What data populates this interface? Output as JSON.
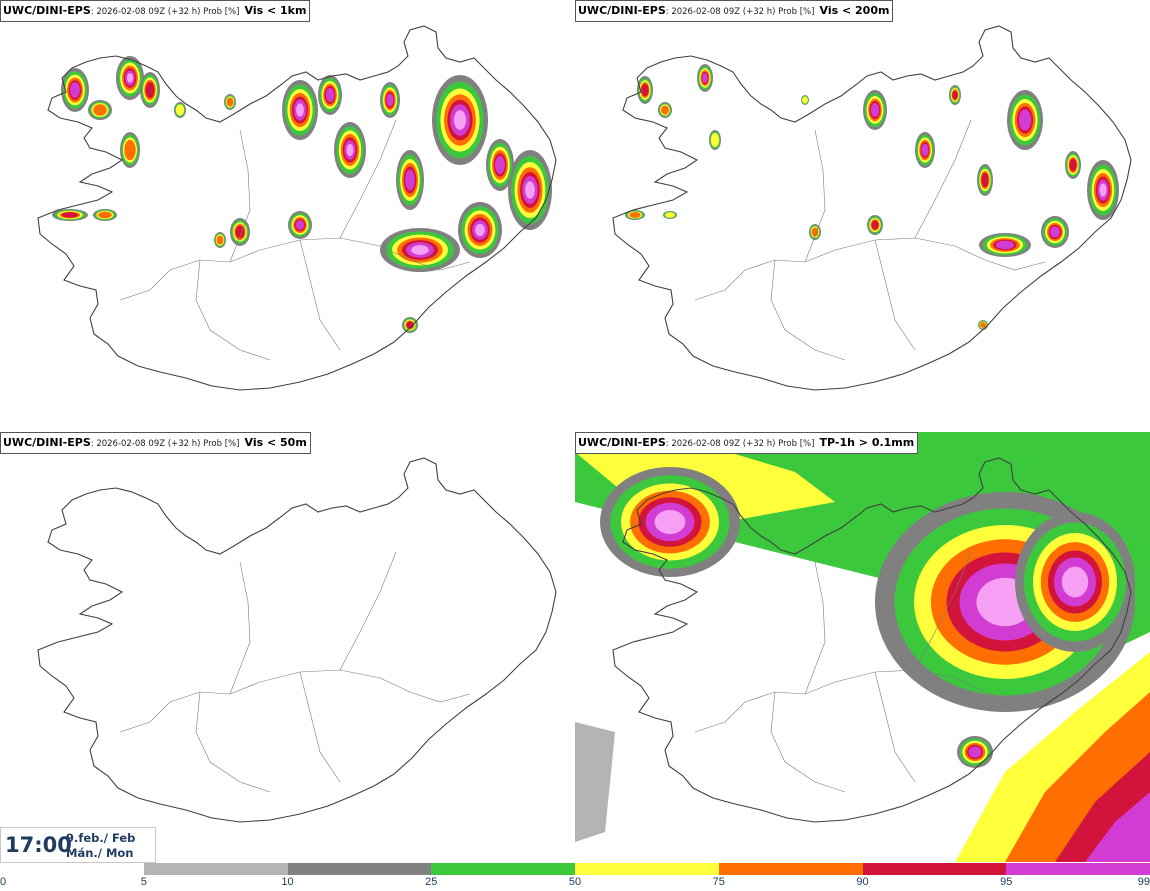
{
  "panels": [
    {
      "model": "UWC/DINI-EPS",
      "run_info": ": 2026-02-08 09Z (+32 h) Prob [%]",
      "variable": "Vis < 1km",
      "coverage": "moderate"
    },
    {
      "model": "UWC/DINI-EPS",
      "run_info": ": 2026-02-08 09Z (+32 h) Prob [%]",
      "variable": "Vis < 200m",
      "coverage": "low"
    },
    {
      "model": "UWC/DINI-EPS",
      "run_info": ": 2026-02-08 09Z (+32 h) Prob [%]",
      "variable": "Vis < 50m",
      "coverage": "none"
    },
    {
      "model": "UWC/DINI-EPS",
      "run_info": ": 2026-02-08 09Z (+32 h) Prob [%]",
      "variable": "TP-1h > 0.1mm",
      "coverage": "high"
    }
  ],
  "time": {
    "clock": "17:00",
    "date_line1": "9.feb./ Feb",
    "date_line2": "Mán./ Mon"
  },
  "colorbar": {
    "ticks": [
      "0",
      "5",
      "10",
      "25",
      "50",
      "75",
      "90",
      "95",
      "99"
    ],
    "colors": [
      "#ffffff",
      "#b4b4b4",
      "#808080",
      "#3cc83c",
      "#ffff3c",
      "#ff6e00",
      "#d2143c",
      "#d23cd2",
      "#f5a0f5"
    ]
  },
  "map": {
    "region": "Iceland",
    "colors": {
      "coast": "#404040",
      "border": "#7a7a7a"
    }
  }
}
